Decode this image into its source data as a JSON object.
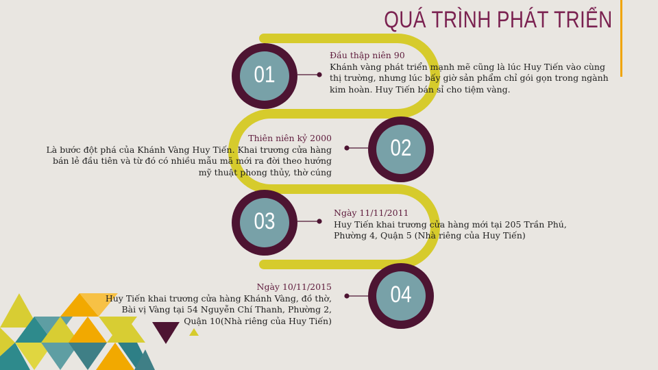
{
  "title": "QUÁ TRÌNH PHÁT TRIỂN",
  "colors": {
    "accent": "#f0a400",
    "title": "#7a2150",
    "track": "#d6cb2c",
    "circle_outer": "#4d1432",
    "circle_inner": "#78a1a8",
    "background": "#e9e6e1"
  },
  "steps": [
    {
      "number": "01",
      "heading": "Đầu thập niên 90",
      "lines": [
        "Khánh vàng phát triển mạnh mẽ cũng là lúc Huy Tiến vào cùng",
        "thị trường, nhưng lúc bấy giờ sản phẩm chỉ gói gọn trong ngành",
        "kim hoàn. Huy Tiến bán sỉ cho tiệm vàng."
      ]
    },
    {
      "number": "02",
      "heading": "Thiên niên kỷ 2000",
      "lines": [
        "Là bước đột phá của Khánh Vàng Huy Tiến. Khai trương cửa hàng",
        "bán lẻ đầu tiên và từ đó có nhiều mẫu mã mới ra đời theo hướng",
        "mỹ thuật phong thủy, thờ cúng"
      ]
    },
    {
      "number": "03",
      "heading": "Ngày 11/11/2011",
      "lines": [
        "Huy Tiến khai trương cửa hàng mới tại 205 Trần Phú,",
        "Phường 4, Quận 5 (Nhà riêng của Huy Tiến)"
      ]
    },
    {
      "number": "04",
      "heading": "Ngày 10/11/2015",
      "lines": [
        "Huy Tiến khai trương cửa hàng Khánh Vàng, đồ thờ,",
        "Bài vị Vàng tại 54 Nguyễn Chí Thanh, Phường 2,",
        "Quận 10(Nhà riêng của Huy Tiến)"
      ]
    }
  ]
}
